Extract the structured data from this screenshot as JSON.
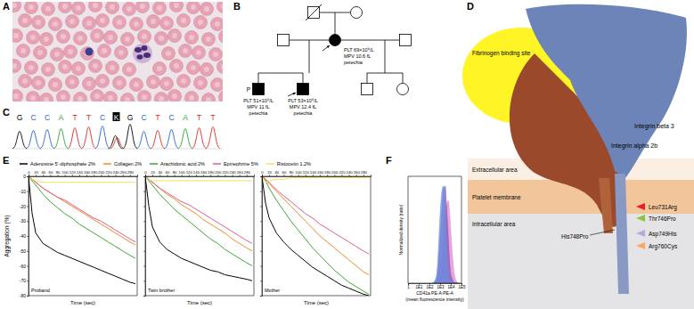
{
  "panel_labels": [
    "A",
    "B",
    "C",
    "D",
    "E",
    "F"
  ],
  "pedigree": {
    "mother": [
      "PLT 69×10⁹/L",
      "MPV 10.6 fL",
      "petechia"
    ],
    "twin_mark": "P",
    "twin_1": [
      "PLT 51×10⁹/L",
      "MPV 11 fL",
      "petechia"
    ],
    "twin_2": [
      "PLT 53×10⁹/L",
      "MPV 12.4 fL",
      "petechia"
    ]
  },
  "chromatogram": {
    "bases": [
      "G",
      "C",
      "C",
      "A",
      "T",
      "T",
      "C",
      "K",
      "G",
      "C",
      "T",
      "C",
      "A",
      "T",
      "T"
    ]
  },
  "structure": {
    "site": "Fibrinogen binding site",
    "alpha": "Integrin alpha 2b",
    "beta": "Integrin beta 3",
    "extracellular": "Extracellular area",
    "membrane": "Platelet membrane",
    "intracellular": "Intracellular area",
    "variants": [
      {
        "label": "Leu731Arg",
        "color": "#e8202a"
      },
      {
        "label": "Thr746Pro",
        "color": "#8cc63f"
      },
      {
        "label": "Asp749His",
        "color": "#b9a7e0"
      },
      {
        "label": "Arg760Cys",
        "color": "#f6a96b"
      }
    ],
    "callout": "His748Pro"
  },
  "chart_data": [
    {
      "type": "line",
      "title": "Proband",
      "xlabel": "Time (sec)",
      "ylabel": "Aggregation (%)",
      "legend": "top",
      "x": [
        0,
        10,
        20,
        40,
        60,
        80,
        100,
        120,
        140,
        160,
        180,
        200,
        220,
        240,
        260,
        280,
        295
      ],
      "series": [
        {
          "name": "Adenosine 5'-diphosphate 2%",
          "color": "#000000",
          "values": [
            0,
            -25,
            -38,
            -45,
            -48,
            -51,
            -53,
            -55,
            -57,
            -59,
            -61,
            -63,
            -65,
            -67,
            -69,
            -71,
            -72
          ]
        },
        {
          "name": "Collagen 2%",
          "color": "#f08a24",
          "values": [
            0,
            -2,
            -4,
            -8,
            -11,
            -14,
            -17,
            -20,
            -23,
            -26,
            -29,
            -32,
            -35,
            -38,
            -41,
            -44,
            -46
          ]
        },
        {
          "name": "Arachidonic acid 2%",
          "color": "#3aa832",
          "values": [
            0,
            -3,
            -6,
            -12,
            -17,
            -21,
            -25,
            -28,
            -32,
            -35,
            -38,
            -41,
            -44,
            -47,
            -50,
            -53,
            -55
          ]
        },
        {
          "name": "Epinephrine 5%",
          "color": "#e05c8c",
          "values": [
            0,
            -2,
            -4,
            -8,
            -11,
            -14,
            -16,
            -19,
            -22,
            -25,
            -28,
            -30,
            -33,
            -36,
            -39,
            -42,
            -44
          ]
        },
        {
          "name": "Ristocetin 1.2%",
          "color": "#f3e05a",
          "values": [
            0,
            -2,
            -3,
            -4,
            -4,
            -4,
            -4,
            -4,
            -4,
            -4,
            -4,
            -4,
            -4,
            -4,
            -4,
            -4,
            -4
          ]
        }
      ],
      "xlim": [
        0,
        300
      ],
      "ylim": [
        -80,
        0
      ],
      "xticks": [
        0,
        20,
        40,
        60,
        80,
        100,
        120,
        140,
        160,
        180,
        200,
        220,
        240,
        260,
        280
      ],
      "yticks": [
        0,
        -10,
        -20,
        -30,
        -40,
        -50,
        -60,
        -70,
        -80
      ]
    },
    {
      "type": "line",
      "title": "Twin brother",
      "xlabel": "Time (sec)",
      "tick_labels": "x",
      "x": [
        0,
        10,
        20,
        40,
        60,
        80,
        100,
        120,
        140,
        160,
        180,
        200,
        220,
        240,
        260,
        280,
        295
      ],
      "series": [
        {
          "color": "#000000",
          "values": [
            0,
            -20,
            -34,
            -44,
            -49,
            -52,
            -55,
            -57,
            -59,
            -61,
            -63,
            -64,
            -66,
            -67,
            -68,
            -69,
            -70
          ]
        },
        {
          "color": "#f08a24",
          "values": [
            0,
            -2,
            -4,
            -8,
            -12,
            -15,
            -19,
            -22,
            -25,
            -29,
            -32,
            -35,
            -38,
            -42,
            -45,
            -48,
            -50
          ]
        },
        {
          "color": "#3aa832",
          "values": [
            0,
            -3,
            -6,
            -12,
            -17,
            -22,
            -26,
            -30,
            -34,
            -38,
            -42,
            -45,
            -49,
            -52,
            -55,
            -58,
            -60
          ]
        },
        {
          "color": "#e05c8c",
          "values": [
            0,
            -2,
            -4,
            -8,
            -11,
            -14,
            -17,
            -19,
            -22,
            -25,
            -28,
            -31,
            -34,
            -37,
            -40,
            -43,
            -45
          ]
        },
        {
          "color": "#f3e05a",
          "values": [
            0,
            -2,
            -3,
            -3,
            -3,
            -3,
            -3,
            -3,
            -3,
            -3,
            -3,
            -3,
            -3,
            -3,
            -3,
            -3,
            -3
          ]
        }
      ],
      "xlim": [
        0,
        300
      ],
      "ylim": [
        -80,
        0
      ],
      "xticks": [
        0,
        20,
        40,
        60,
        80,
        100,
        120,
        140,
        160,
        180,
        200,
        220,
        240,
        260,
        280
      ],
      "yticks": [
        0,
        -10,
        -20,
        -30,
        -40,
        -50,
        -60,
        -70,
        -80
      ]
    },
    {
      "type": "line",
      "title": "Mother",
      "xlabel": "Time (sec)",
      "tick_labels": "x",
      "x": [
        0,
        10,
        20,
        40,
        60,
        80,
        100,
        120,
        140,
        160,
        180,
        200,
        220,
        240,
        260,
        280,
        295
      ],
      "series": [
        {
          "color": "#000000",
          "values": [
            0,
            -18,
            -28,
            -38,
            -44,
            -49,
            -53,
            -57,
            -61,
            -64,
            -67,
            -70,
            -73,
            -75,
            -77,
            -79,
            -80
          ]
        },
        {
          "color": "#f08a24",
          "values": [
            0,
            -2,
            -5,
            -10,
            -15,
            -20,
            -25,
            -30,
            -35,
            -40,
            -44,
            -48,
            -52,
            -56,
            -60,
            -64,
            -66
          ]
        },
        {
          "color": "#3aa832",
          "values": [
            0,
            -3,
            -8,
            -16,
            -23,
            -30,
            -36,
            -42,
            -48,
            -53,
            -58,
            -63,
            -67,
            -71,
            -74,
            -77,
            -79
          ]
        },
        {
          "color": "#e05c8c",
          "values": [
            0,
            -2,
            -4,
            -9,
            -13,
            -17,
            -21,
            -25,
            -28,
            -32,
            -35,
            -38,
            -41,
            -44,
            -47,
            -50,
            -52
          ]
        },
        {
          "color": "#f3e05a",
          "values": [
            0,
            -4,
            -3,
            -2,
            -2,
            -1,
            -1,
            -1,
            -1,
            -1,
            -1,
            -1,
            -1,
            -1,
            -1,
            -1,
            -1
          ]
        }
      ],
      "xlim": [
        0,
        300
      ],
      "ylim": [
        -80,
        0
      ],
      "xticks": [
        0,
        20,
        40,
        60,
        80,
        100,
        120,
        140,
        160,
        180,
        200,
        220,
        240,
        260,
        280
      ],
      "yticks": [
        0,
        -10,
        -20,
        -30,
        -40,
        -50,
        -60,
        -70,
        -80
      ]
    },
    {
      "type": "area",
      "log": "x",
      "tick_labels": "x",
      "xlabel": [
        "CD41a PE-A:PE-A",
        "(mean fluorescence intensity)"
      ],
      "ylabel": "Normalized density (ratio)",
      "x": [
        200,
        300,
        500,
        700,
        1000,
        1500,
        2000,
        3000,
        4000,
        6000,
        8000,
        12000,
        20000,
        30000,
        50000
      ],
      "series": [
        {
          "color": "#6a8fe0",
          "values": [
            0,
            0.02,
            0.1,
            0.35,
            0.7,
            0.95,
            1,
            0.75,
            0.4,
            0.12,
            0.04,
            0.01,
            0,
            0,
            0
          ]
        },
        {
          "color": "#8a55b5",
          "values": [
            0,
            0.01,
            0.05,
            0.2,
            0.45,
            0.75,
            0.95,
            1,
            0.8,
            0.45,
            0.2,
            0.06,
            0.01,
            0,
            0
          ]
        },
        {
          "color": "#e08ad0",
          "values": [
            0,
            0,
            0.02,
            0.06,
            0.15,
            0.3,
            0.45,
            0.65,
            0.8,
            0.85,
            0.7,
            0.4,
            0.12,
            0.03,
            0
          ]
        }
      ],
      "xlim": [
        1,
        100000
      ],
      "ylim": [
        0,
        1.1
      ],
      "xticks": [
        1,
        {
          "value": 10,
          "label": "1E1"
        },
        {
          "value": 100,
          "label": "1E2"
        },
        {
          "value": 1000,
          "label": "1E3"
        },
        {
          "value": 10000,
          "label": "1E4"
        },
        {
          "value": 100000,
          "label": "1E5"
        }
      ]
    }
  ]
}
